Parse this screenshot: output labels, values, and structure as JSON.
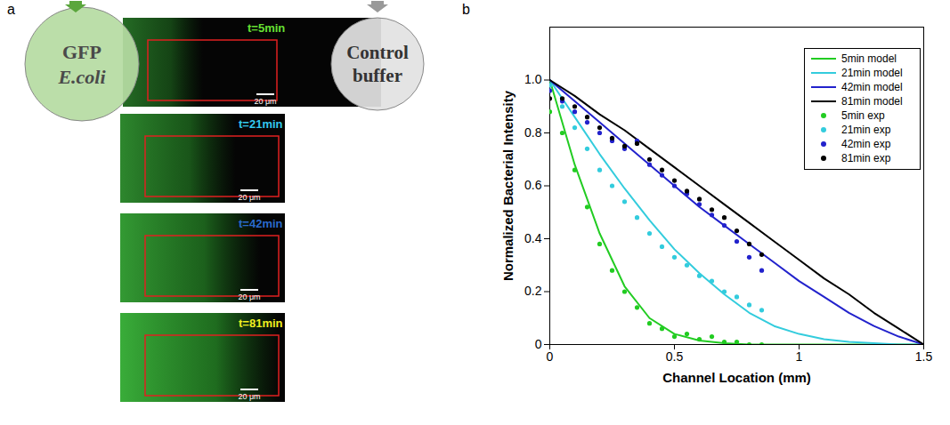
{
  "panel_a": {
    "label": "a",
    "left_inlet": {
      "lines": [
        "GFP",
        "E.coli"
      ]
    },
    "right_inlet": {
      "lines": [
        "Control",
        "buffer"
      ]
    },
    "frames": [
      {
        "time": "t=5min",
        "color": "#66e033"
      },
      {
        "time": "t=21min",
        "color": "#33c8ee"
      },
      {
        "time": "t=42min",
        "color": "#2a6acc"
      },
      {
        "time": "t=81min",
        "color": "#f0f020"
      }
    ],
    "scale_bar": "20 μm"
  },
  "chart_data": {
    "type": "line",
    "label": "b",
    "x_label": "Channel Location (mm)",
    "y_label": "Normalized Bacterial Intensity",
    "xlim": [
      0,
      1.5
    ],
    "xticks": [
      0,
      0.5,
      1,
      1.5
    ],
    "ylim": [
      0,
      1.2
    ],
    "yticks": [
      0,
      {
        "value": 0.2,
        "label": "0.2"
      },
      {
        "value": 0.4,
        "label": "0.4"
      },
      {
        "value": 0.6,
        "label": "0.6"
      },
      {
        "value": 0.8,
        "label": "0.8"
      },
      {
        "value": 1,
        "label": "1.0"
      }
    ],
    "grid": false,
    "legend": "upper right",
    "series": [
      {
        "name": "5min model",
        "color": "#22cc22",
        "type": "line",
        "x": [
          0,
          0.1,
          0.2,
          0.3,
          0.4,
          0.5,
          0.6,
          0.7,
          0.8,
          0.9,
          1.0,
          1.1,
          1.2,
          1.3,
          1.4,
          1.5
        ],
        "values": [
          1,
          0.68,
          0.42,
          0.22,
          0.1,
          0.04,
          0.015,
          0.005,
          0,
          0,
          0,
          0,
          0,
          0,
          0,
          0
        ]
      },
      {
        "name": "21min model",
        "color": "#33ccdd",
        "type": "line",
        "x": [
          0,
          0.1,
          0.2,
          0.3,
          0.4,
          0.5,
          0.6,
          0.7,
          0.8,
          0.9,
          1.0,
          1.1,
          1.2,
          1.3,
          1.4,
          1.5
        ],
        "values": [
          1,
          0.86,
          0.72,
          0.59,
          0.47,
          0.36,
          0.27,
          0.19,
          0.12,
          0.07,
          0.04,
          0.02,
          0.01,
          0.005,
          0,
          0
        ]
      },
      {
        "name": "42min model",
        "color": "#2222cc",
        "type": "line",
        "x": [
          0,
          0.1,
          0.2,
          0.3,
          0.4,
          0.5,
          0.6,
          0.7,
          0.8,
          0.9,
          1.0,
          1.1,
          1.2,
          1.3,
          1.4,
          1.5
        ],
        "values": [
          1,
          0.92,
          0.84,
          0.76,
          0.68,
          0.6,
          0.52,
          0.45,
          0.38,
          0.31,
          0.24,
          0.18,
          0.12,
          0.07,
          0.03,
          0
        ]
      },
      {
        "name": "81min model",
        "color": "#000000",
        "type": "line",
        "x": [
          0,
          0.1,
          0.2,
          0.3,
          0.4,
          0.5,
          0.6,
          0.7,
          0.8,
          0.9,
          1.0,
          1.1,
          1.2,
          1.3,
          1.4,
          1.5
        ],
        "values": [
          1,
          0.94,
          0.87,
          0.81,
          0.74,
          0.67,
          0.6,
          0.53,
          0.46,
          0.39,
          0.32,
          0.25,
          0.19,
          0.12,
          0.06,
          0
        ]
      },
      {
        "name": "5min exp",
        "color": "#22cc22",
        "type": "scatter",
        "x": [
          0,
          0.05,
          0.1,
          0.15,
          0.2,
          0.25,
          0.3,
          0.35,
          0.4,
          0.45,
          0.5,
          0.55,
          0.6,
          0.65,
          0.7,
          0.75,
          0.8,
          0.85
        ],
        "values": [
          0.88,
          0.8,
          0.66,
          0.52,
          0.38,
          0.28,
          0.2,
          0.14,
          0.08,
          0.06,
          0.03,
          0.04,
          0.02,
          0.03,
          0.01,
          0.01,
          0,
          0
        ]
      },
      {
        "name": "21min exp",
        "color": "#33ccdd",
        "type": "scatter",
        "x": [
          0,
          0.05,
          0.1,
          0.15,
          0.2,
          0.25,
          0.3,
          0.35,
          0.4,
          0.45,
          0.5,
          0.55,
          0.6,
          0.65,
          0.7,
          0.75,
          0.8,
          0.85
        ],
        "values": [
          0.98,
          0.9,
          0.82,
          0.74,
          0.66,
          0.6,
          0.54,
          0.48,
          0.42,
          0.37,
          0.33,
          0.3,
          0.26,
          0.24,
          0.2,
          0.18,
          0.15,
          0.13
        ]
      },
      {
        "name": "42min exp",
        "color": "#2222cc",
        "type": "scatter",
        "x": [
          0,
          0.05,
          0.1,
          0.15,
          0.2,
          0.25,
          0.3,
          0.35,
          0.4,
          0.45,
          0.5,
          0.55,
          0.6,
          0.65,
          0.7,
          0.75,
          0.8,
          0.85
        ],
        "values": [
          0.96,
          0.92,
          0.88,
          0.84,
          0.8,
          0.77,
          0.74,
          0.77,
          0.68,
          0.64,
          0.6,
          0.57,
          0.53,
          0.49,
          0.45,
          0.39,
          0.33,
          0.28
        ]
      },
      {
        "name": "81min exp",
        "color": "#000000",
        "type": "scatter",
        "x": [
          0,
          0.05,
          0.1,
          0.15,
          0.2,
          0.25,
          0.3,
          0.35,
          0.4,
          0.45,
          0.5,
          0.55,
          0.6,
          0.65,
          0.7,
          0.75,
          0.8,
          0.85
        ],
        "values": [
          0.93,
          0.93,
          0.9,
          0.86,
          0.82,
          0.78,
          0.75,
          0.76,
          0.7,
          0.66,
          0.62,
          0.58,
          0.55,
          0.51,
          0.48,
          0.43,
          0.38,
          0.34
        ]
      }
    ]
  }
}
